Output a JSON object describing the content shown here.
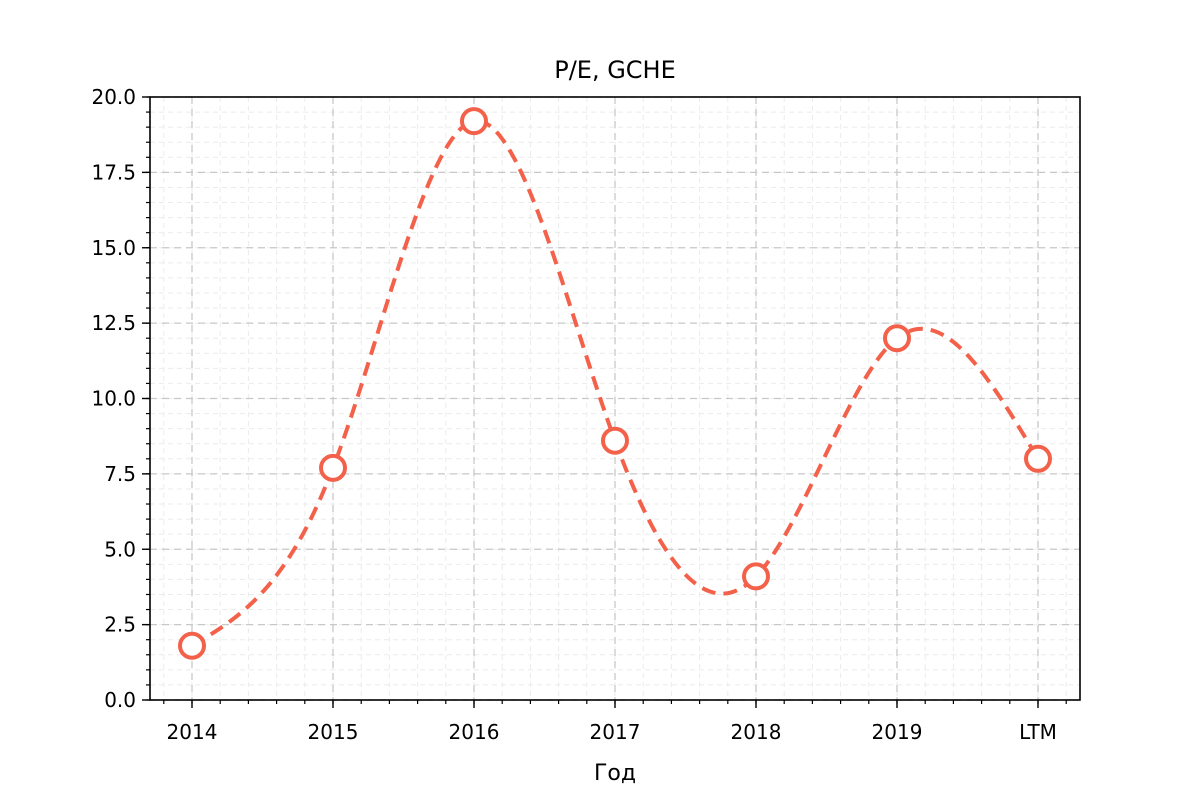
{
  "chart_data": {
    "type": "line",
    "title": "P/E, GCHE",
    "xlabel": "Год",
    "ylabel": "",
    "categories": [
      "2014",
      "2015",
      "2016",
      "2017",
      "2018",
      "2019",
      "LTM"
    ],
    "series": [
      {
        "values": [
          1.8,
          7.7,
          19.2,
          8.6,
          4.1,
          12.0,
          8.0
        ],
        "color": "#f4614a",
        "line_style": "dashed",
        "smoothed": true,
        "marker": "open-circle"
      }
    ],
    "ylim": [
      0,
      20
    ],
    "yticks": [
      "0.0",
      "2.5",
      "5.0",
      "7.5",
      "10.0",
      "12.5",
      "15.0",
      "17.5",
      "20.0"
    ],
    "grid": true
  }
}
